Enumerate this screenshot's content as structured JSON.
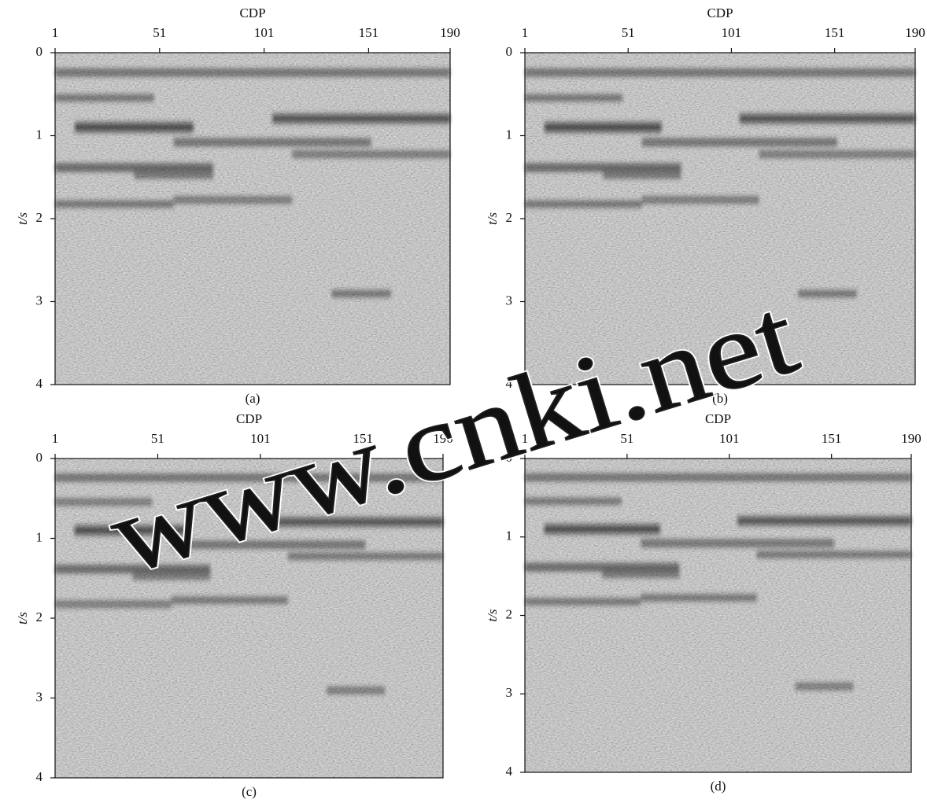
{
  "chart_data": [
    {
      "type": "seismic",
      "xlabel": "CDP",
      "ylabel": "t/s",
      "xlim": [
        1,
        190
      ],
      "xticks": [
        1,
        51,
        101,
        151,
        190
      ],
      "ylim": [
        0,
        4
      ],
      "yticks": [
        0,
        1,
        2,
        3,
        4
      ],
      "y_inverted": true,
      "caption": "(a)"
    },
    {
      "type": "seismic",
      "xlabel": "CDP",
      "ylabel": "t/s",
      "xlim": [
        1,
        190
      ],
      "xticks": [
        1,
        51,
        101,
        151,
        190
      ],
      "ylim": [
        0,
        4
      ],
      "yticks": [
        0,
        1,
        2,
        3,
        4
      ],
      "y_inverted": true,
      "caption": "(b)"
    },
    {
      "type": "seismic",
      "xlabel": "CDP",
      "ylabel": "t/s",
      "xlim": [
        1,
        190
      ],
      "xticks": [
        1,
        51,
        101,
        151,
        190
      ],
      "ylim": [
        0,
        4
      ],
      "yticks": [
        0,
        1,
        2,
        3,
        4
      ],
      "y_inverted": true,
      "caption": "(c)"
    },
    {
      "type": "seismic",
      "xlabel": "CDP",
      "ylabel": "t/s",
      "xlim": [
        1,
        190
      ],
      "xticks": [
        1,
        51,
        101,
        151,
        190
      ],
      "ylim": [
        0,
        4
      ],
      "yticks": [
        0,
        1,
        2,
        3,
        4
      ],
      "y_inverted": true,
      "caption": "(d)"
    }
  ],
  "watermark": "www.cnki.net"
}
